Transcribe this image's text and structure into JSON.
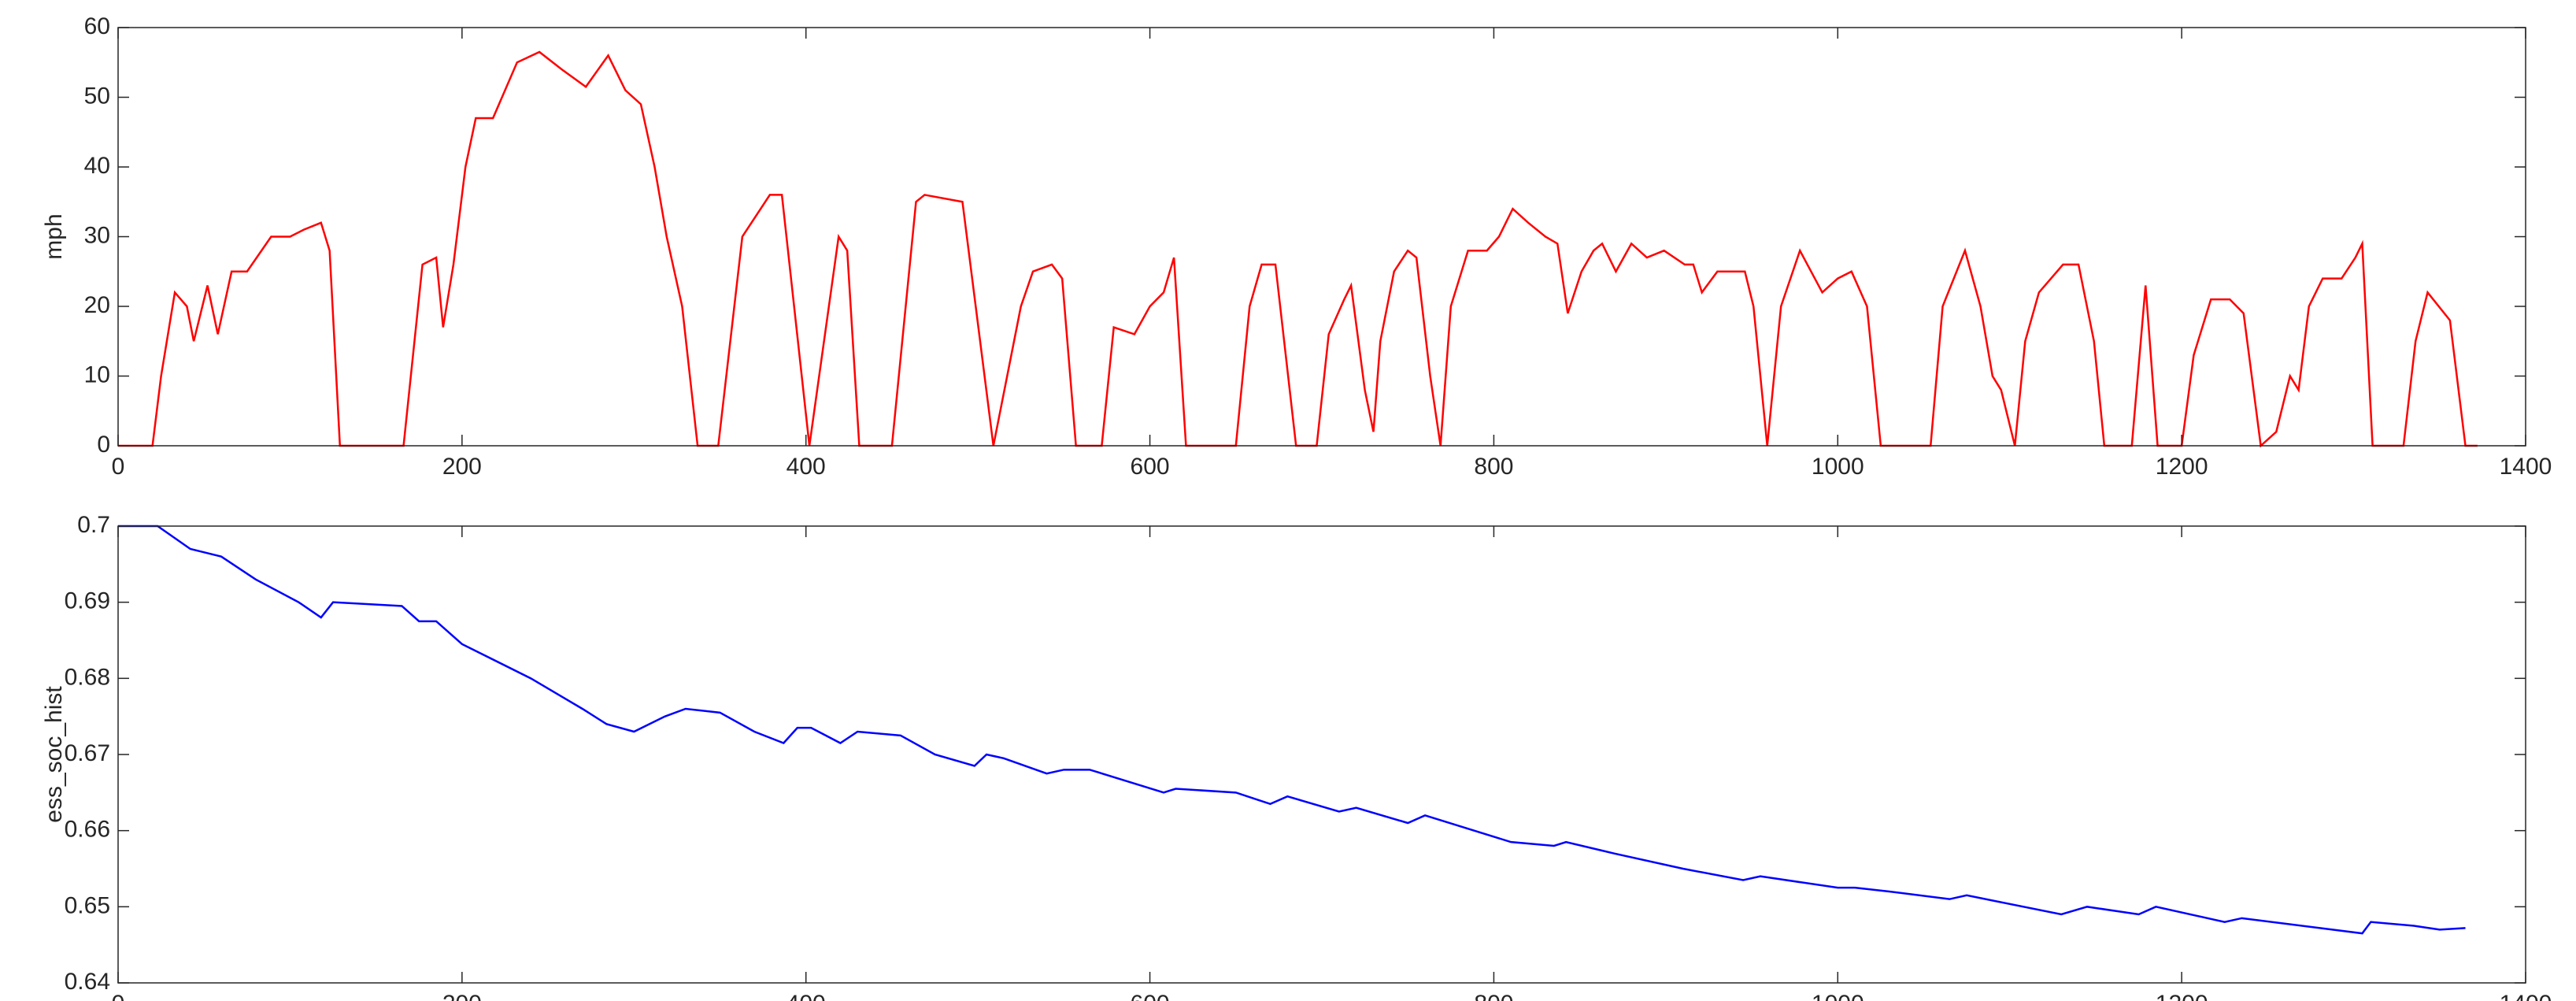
{
  "chart_data": [
    {
      "type": "line",
      "y_label": "mph",
      "color": "#ff0000",
      "x": [
        0,
        20,
        25,
        33,
        40,
        44,
        52,
        58,
        66,
        75,
        89,
        100,
        108,
        118,
        123,
        129,
        166,
        177,
        185,
        189,
        195,
        202,
        208,
        218,
        232,
        245,
        258,
        272,
        285,
        295,
        304,
        312,
        319,
        328,
        337,
        349,
        363,
        379,
        386,
        402,
        419,
        424,
        431,
        450,
        464,
        469,
        491,
        509,
        517,
        525,
        532,
        543,
        549,
        557,
        572,
        579,
        591,
        600,
        608,
        614,
        621,
        650,
        658,
        665,
        673,
        685,
        697,
        704,
        713,
        717,
        725,
        730,
        734,
        742,
        750,
        755,
        763,
        769,
        775,
        785,
        796,
        803,
        811,
        820,
        830,
        837,
        843,
        851,
        858,
        863,
        871,
        880,
        889,
        899,
        911,
        916,
        921,
        930,
        946,
        951,
        959,
        967,
        978,
        991,
        1000,
        1008,
        1017,
        1025,
        1054,
        1061,
        1074,
        1083,
        1090,
        1095,
        1103,
        1109,
        1117,
        1131,
        1140,
        1149,
        1155,
        1171,
        1179,
        1186,
        1200,
        1207,
        1217,
        1228,
        1236,
        1246,
        1255,
        1263,
        1268,
        1274,
        1282,
        1293,
        1301,
        1305,
        1311,
        1329,
        1336,
        1343,
        1356,
        1365,
        1372
      ],
      "values": [
        0,
        0,
        10,
        22,
        20,
        15,
        23,
        16,
        25,
        25,
        30,
        30,
        31,
        32,
        28,
        0,
        0,
        26,
        27,
        17,
        26,
        40,
        47,
        47,
        55,
        56.5,
        54,
        51.5,
        56,
        51,
        49,
        40,
        30,
        20,
        0,
        0,
        30,
        36,
        36,
        0,
        30,
        28,
        0,
        0,
        35,
        36,
        35,
        0,
        10,
        20,
        25,
        26,
        24,
        0,
        0,
        17,
        16,
        20,
        22,
        27,
        0,
        0,
        20,
        26,
        26,
        0,
        0,
        16,
        21,
        23,
        8,
        2,
        15,
        25,
        28,
        27,
        10,
        0,
        20,
        28,
        28,
        30,
        34,
        32,
        30,
        29,
        19,
        25,
        28,
        29,
        25,
        29,
        27,
        28,
        26,
        26,
        22,
        25,
        25,
        20,
        0,
        20,
        28,
        22,
        24,
        25,
        20,
        0,
        0,
        20,
        28,
        20,
        10,
        8,
        0,
        15,
        22,
        26,
        26,
        15,
        0,
        0,
        23,
        0,
        0,
        13,
        21,
        21,
        19,
        0,
        2,
        10,
        8,
        20,
        24,
        24,
        27,
        29,
        0,
        0,
        15,
        22,
        18,
        0,
        0
      ],
      "xlim": [
        0,
        1400
      ],
      "xticks": [
        0,
        200,
        400,
        600,
        800,
        1000,
        1200,
        1400
      ],
      "ylim": [
        0,
        60
      ],
      "yticks": [
        0,
        10,
        20,
        30,
        40,
        50,
        60
      ]
    },
    {
      "type": "line",
      "y_label": "ess_soc_hist",
      "color": "#0000ff",
      "x": [
        0,
        23,
        42,
        60,
        80,
        105,
        118,
        125,
        165,
        175,
        185,
        200,
        240,
        270,
        284,
        300,
        318,
        330,
        350,
        370,
        387,
        395,
        403,
        420,
        430,
        455,
        475,
        498,
        505,
        515,
        540,
        550,
        565,
        608,
        615,
        650,
        670,
        680,
        710,
        720,
        750,
        760,
        810,
        835,
        842,
        870,
        910,
        945,
        955,
        1000,
        1010,
        1030,
        1065,
        1075,
        1130,
        1145,
        1175,
        1185,
        1225,
        1235,
        1305,
        1310,
        1335,
        1350,
        1365
      ],
      "values": [
        0.7,
        0.7,
        0.697,
        0.696,
        0.693,
        0.69,
        0.688,
        0.69,
        0.6895,
        0.6875,
        0.6875,
        0.6845,
        0.68,
        0.676,
        0.674,
        0.673,
        0.675,
        0.676,
        0.6755,
        0.673,
        0.6715,
        0.6735,
        0.6735,
        0.6715,
        0.673,
        0.6725,
        0.67,
        0.6685,
        0.67,
        0.6695,
        0.6675,
        0.668,
        0.668,
        0.665,
        0.6655,
        0.665,
        0.6635,
        0.6645,
        0.6625,
        0.663,
        0.661,
        0.662,
        0.6585,
        0.658,
        0.6585,
        0.657,
        0.655,
        0.6535,
        0.654,
        0.6525,
        0.6525,
        0.652,
        0.651,
        0.6515,
        0.649,
        0.65,
        0.649,
        0.65,
        0.648,
        0.6485,
        0.6465,
        0.648,
        0.6475,
        0.647,
        0.6472
      ],
      "xlim": [
        0,
        1400
      ],
      "xticks": [
        0,
        200,
        400,
        600,
        800,
        1000,
        1200,
        1400
      ],
      "ylim": [
        0.64,
        0.7
      ],
      "yticks": [
        0.64,
        0.65,
        0.66,
        0.67,
        0.68,
        0.69,
        0.7
      ]
    }
  ]
}
